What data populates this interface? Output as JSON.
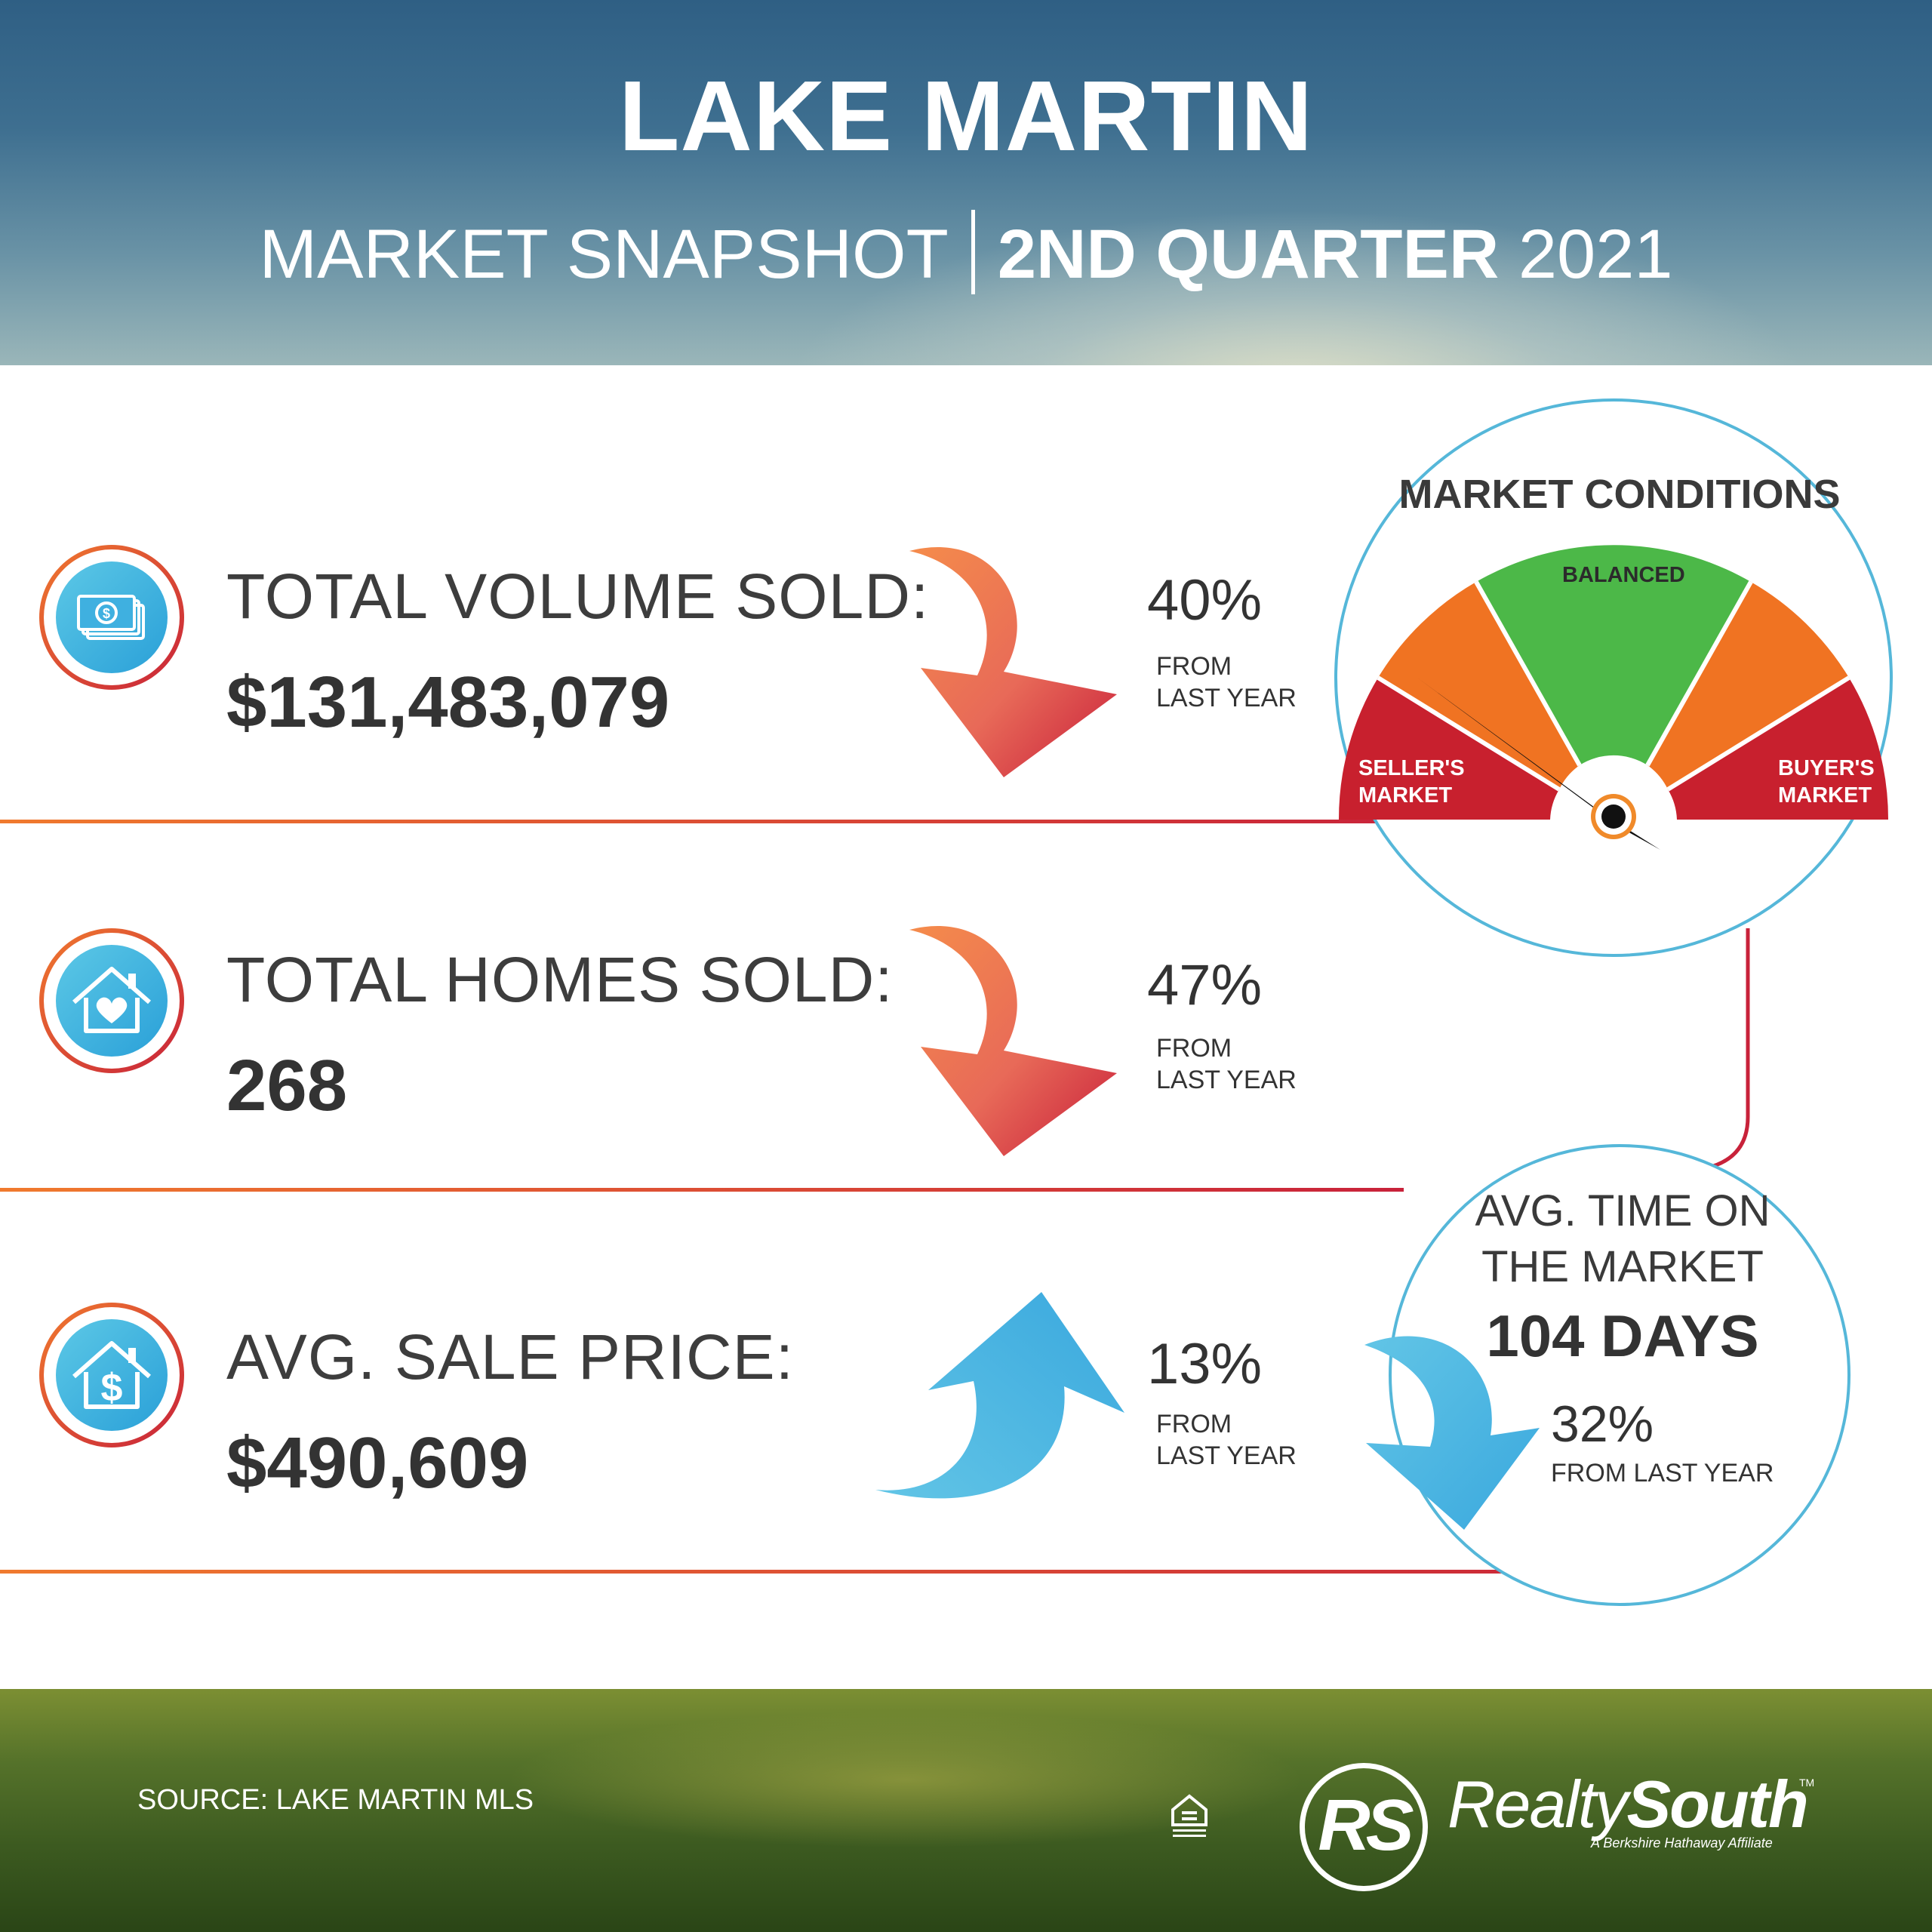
{
  "header": {
    "title": "LAKE MARTIN",
    "subtitle_left": "MARKET SNAPSHOT",
    "subtitle_bold": "2ND QUARTER",
    "subtitle_year": "2021"
  },
  "stats": [
    {
      "label": "TOTAL VOLUME SOLD:",
      "value": "$131,483,079",
      "change": "40%",
      "change_direction": "down",
      "from_line1": "FROM",
      "from_line2": "LAST YEAR",
      "icon": "money-icon"
    },
    {
      "label": "TOTAL HOMES SOLD:",
      "value": "268",
      "change": "47%",
      "change_direction": "down",
      "from_line1": "FROM",
      "from_line2": "LAST YEAR",
      "icon": "house-heart-icon"
    },
    {
      "label": "AVG. SALE PRICE:",
      "value": "$490,609",
      "change": "13%",
      "change_direction": "up",
      "from_line1": "FROM",
      "from_line2": "LAST YEAR",
      "icon": "house-dollar-icon"
    }
  ],
  "market_conditions": {
    "title": "MARKET CONDITIONS",
    "sellers_line1": "SELLER'S",
    "sellers_line2": "MARKET",
    "balanced": "BALANCED",
    "buyers_line1": "BUYER'S",
    "buyers_line2": "MARKET",
    "needle_position": "seller's market",
    "colors": {
      "red": "#c8202e",
      "orange": "#f07322",
      "green": "#4cb848"
    }
  },
  "time_on_market": {
    "label_line1": "AVG. TIME ON",
    "label_line2": "THE MARKET",
    "value": "104 DAYS",
    "change": "32%",
    "change_direction": "down",
    "from": "FROM LAST YEAR"
  },
  "footer": {
    "source": "SOURCE: LAKE MARTIN MLS",
    "logo_letters": "RS",
    "brand_light": "Realty",
    "brand_bold": "South",
    "trademark": "TM",
    "affiliate": "A Berkshire Hathaway Affiliate",
    "eho_icon": "equal-housing-opportunity-icon"
  },
  "colors": {
    "accent_orange": "#f07a2e",
    "accent_red": "#c8223a",
    "accent_blue": "#3fb0e0"
  }
}
